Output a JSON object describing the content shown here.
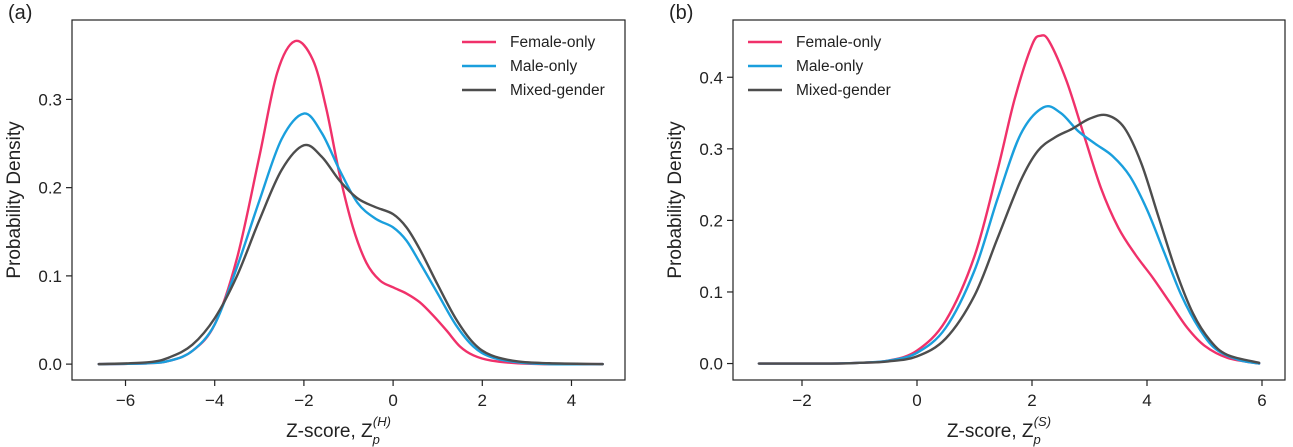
{
  "colors": {
    "female": "#f0316a",
    "male": "#1a9fdd",
    "mixed": "#4d4d4d"
  },
  "chart_data": [
    {
      "type": "line",
      "panel_label": "(a)",
      "xlabel_main": "Z-score, Z",
      "xlabel_sub": "p",
      "xlabel_sup": "(H)",
      "ylabel": "Probability Density",
      "xlim": [
        -7.2,
        5.2
      ],
      "ylim": [
        -0.018,
        0.39
      ],
      "xticks": [
        -6,
        -4,
        -2,
        0,
        2,
        4
      ],
      "xtick_labels": [
        "−6",
        "−4",
        "−2",
        "0",
        "2",
        "4"
      ],
      "yticks": [
        0.0,
        0.1,
        0.2,
        0.3
      ],
      "ytick_labels": [
        "0.0",
        "0.1",
        "0.2",
        "0.3"
      ],
      "legend_position": "top-right",
      "series": [
        {
          "name": "Female-only",
          "color_key": "female",
          "points": [
            [
              -6.6,
              0.0
            ],
            [
              -5.5,
              0.001
            ],
            [
              -5.0,
              0.004
            ],
            [
              -4.5,
              0.015
            ],
            [
              -4.0,
              0.045
            ],
            [
              -3.5,
              0.12
            ],
            [
              -3.0,
              0.235
            ],
            [
              -2.6,
              0.33
            ],
            [
              -2.2,
              0.366
            ],
            [
              -1.8,
              0.345
            ],
            [
              -1.5,
              0.29
            ],
            [
              -1.2,
              0.215
            ],
            [
              -0.9,
              0.155
            ],
            [
              -0.6,
              0.115
            ],
            [
              -0.3,
              0.095
            ],
            [
              0.0,
              0.087
            ],
            [
              0.3,
              0.08
            ],
            [
              0.6,
              0.07
            ],
            [
              0.9,
              0.055
            ],
            [
              1.2,
              0.038
            ],
            [
              1.5,
              0.02
            ],
            [
              1.8,
              0.01
            ],
            [
              2.2,
              0.004
            ],
            [
              2.8,
              0.001
            ],
            [
              3.5,
              0.0
            ],
            [
              4.7,
              0.0
            ]
          ]
        },
        {
          "name": "Male-only",
          "color_key": "male",
          "points": [
            [
              -6.6,
              0.0
            ],
            [
              -5.5,
              0.001
            ],
            [
              -5.0,
              0.004
            ],
            [
              -4.5,
              0.015
            ],
            [
              -4.0,
              0.045
            ],
            [
              -3.5,
              0.11
            ],
            [
              -3.0,
              0.185
            ],
            [
              -2.5,
              0.255
            ],
            [
              -2.0,
              0.284
            ],
            [
              -1.6,
              0.262
            ],
            [
              -1.2,
              0.22
            ],
            [
              -0.8,
              0.183
            ],
            [
              -0.4,
              0.165
            ],
            [
              0.0,
              0.155
            ],
            [
              0.3,
              0.14
            ],
            [
              0.6,
              0.115
            ],
            [
              1.0,
              0.08
            ],
            [
              1.4,
              0.045
            ],
            [
              1.8,
              0.02
            ],
            [
              2.2,
              0.008
            ],
            [
              2.8,
              0.002
            ],
            [
              3.5,
              0.0
            ],
            [
              4.7,
              0.0
            ]
          ]
        },
        {
          "name": "Mixed-gender",
          "color_key": "mixed",
          "points": [
            [
              -6.6,
              0.0
            ],
            [
              -5.5,
              0.002
            ],
            [
              -5.0,
              0.008
            ],
            [
              -4.5,
              0.022
            ],
            [
              -4.0,
              0.052
            ],
            [
              -3.5,
              0.1
            ],
            [
              -3.0,
              0.163
            ],
            [
              -2.5,
              0.22
            ],
            [
              -2.0,
              0.248
            ],
            [
              -1.6,
              0.235
            ],
            [
              -1.2,
              0.208
            ],
            [
              -0.8,
              0.188
            ],
            [
              -0.4,
              0.178
            ],
            [
              0.0,
              0.17
            ],
            [
              0.3,
              0.155
            ],
            [
              0.6,
              0.13
            ],
            [
              1.0,
              0.09
            ],
            [
              1.4,
              0.052
            ],
            [
              1.8,
              0.024
            ],
            [
              2.2,
              0.01
            ],
            [
              2.8,
              0.003
            ],
            [
              3.5,
              0.001
            ],
            [
              4.7,
              0.0
            ]
          ]
        }
      ]
    },
    {
      "type": "line",
      "panel_label": "(b)",
      "xlabel_main": "Z-score, Z",
      "xlabel_sub": "p",
      "xlabel_sup": "(S)",
      "ylabel": "Probability Density",
      "xlim": [
        -3.2,
        6.4
      ],
      "ylim": [
        -0.023,
        0.48
      ],
      "xticks": [
        -2,
        0,
        2,
        4,
        6
      ],
      "xtick_labels": [
        "−2",
        "0",
        "2",
        "4",
        "6"
      ],
      "yticks": [
        0.0,
        0.1,
        0.2,
        0.3,
        0.4
      ],
      "ytick_labels": [
        "0.0",
        "0.1",
        "0.2",
        "0.3",
        "0.4"
      ],
      "legend_position": "top-left",
      "series": [
        {
          "name": "Female-only",
          "color_key": "female",
          "points": [
            [
              -2.75,
              0.0
            ],
            [
              -1.5,
              0.0
            ],
            [
              -1.0,
              0.001
            ],
            [
              -0.5,
              0.004
            ],
            [
              0.0,
              0.018
            ],
            [
              0.5,
              0.06
            ],
            [
              1.0,
              0.15
            ],
            [
              1.4,
              0.27
            ],
            [
              1.7,
              0.37
            ],
            [
              2.0,
              0.445
            ],
            [
              2.15,
              0.458
            ],
            [
              2.3,
              0.45
            ],
            [
              2.6,
              0.395
            ],
            [
              2.9,
              0.32
            ],
            [
              3.2,
              0.245
            ],
            [
              3.5,
              0.19
            ],
            [
              3.8,
              0.152
            ],
            [
              4.1,
              0.12
            ],
            [
              4.4,
              0.085
            ],
            [
              4.7,
              0.05
            ],
            [
              5.0,
              0.025
            ],
            [
              5.4,
              0.008
            ],
            [
              5.95,
              0.0
            ]
          ]
        },
        {
          "name": "Male-only",
          "color_key": "male",
          "points": [
            [
              -2.75,
              0.0
            ],
            [
              -1.5,
              0.0
            ],
            [
              -1.0,
              0.001
            ],
            [
              -0.5,
              0.004
            ],
            [
              0.0,
              0.015
            ],
            [
              0.5,
              0.05
            ],
            [
              1.0,
              0.13
            ],
            [
              1.4,
              0.23
            ],
            [
              1.8,
              0.32
            ],
            [
              2.2,
              0.358
            ],
            [
              2.5,
              0.35
            ],
            [
              2.8,
              0.325
            ],
            [
              3.1,
              0.307
            ],
            [
              3.4,
              0.29
            ],
            [
              3.7,
              0.262
            ],
            [
              4.0,
              0.215
            ],
            [
              4.3,
              0.155
            ],
            [
              4.6,
              0.095
            ],
            [
              4.9,
              0.05
            ],
            [
              5.2,
              0.02
            ],
            [
              5.6,
              0.005
            ],
            [
              5.95,
              0.0
            ]
          ]
        },
        {
          "name": "Mixed-gender",
          "color_key": "mixed",
          "points": [
            [
              -2.75,
              0.0
            ],
            [
              -1.5,
              0.0
            ],
            [
              -1.0,
              0.001
            ],
            [
              -0.5,
              0.003
            ],
            [
              0.0,
              0.01
            ],
            [
              0.5,
              0.035
            ],
            [
              1.0,
              0.095
            ],
            [
              1.4,
              0.175
            ],
            [
              1.8,
              0.255
            ],
            [
              2.1,
              0.297
            ],
            [
              2.4,
              0.316
            ],
            [
              2.7,
              0.328
            ],
            [
              3.0,
              0.342
            ],
            [
              3.3,
              0.347
            ],
            [
              3.6,
              0.33
            ],
            [
              3.9,
              0.28
            ],
            [
              4.2,
              0.205
            ],
            [
              4.5,
              0.13
            ],
            [
              4.8,
              0.07
            ],
            [
              5.1,
              0.032
            ],
            [
              5.4,
              0.012
            ],
            [
              5.95,
              0.001
            ]
          ]
        }
      ]
    }
  ]
}
